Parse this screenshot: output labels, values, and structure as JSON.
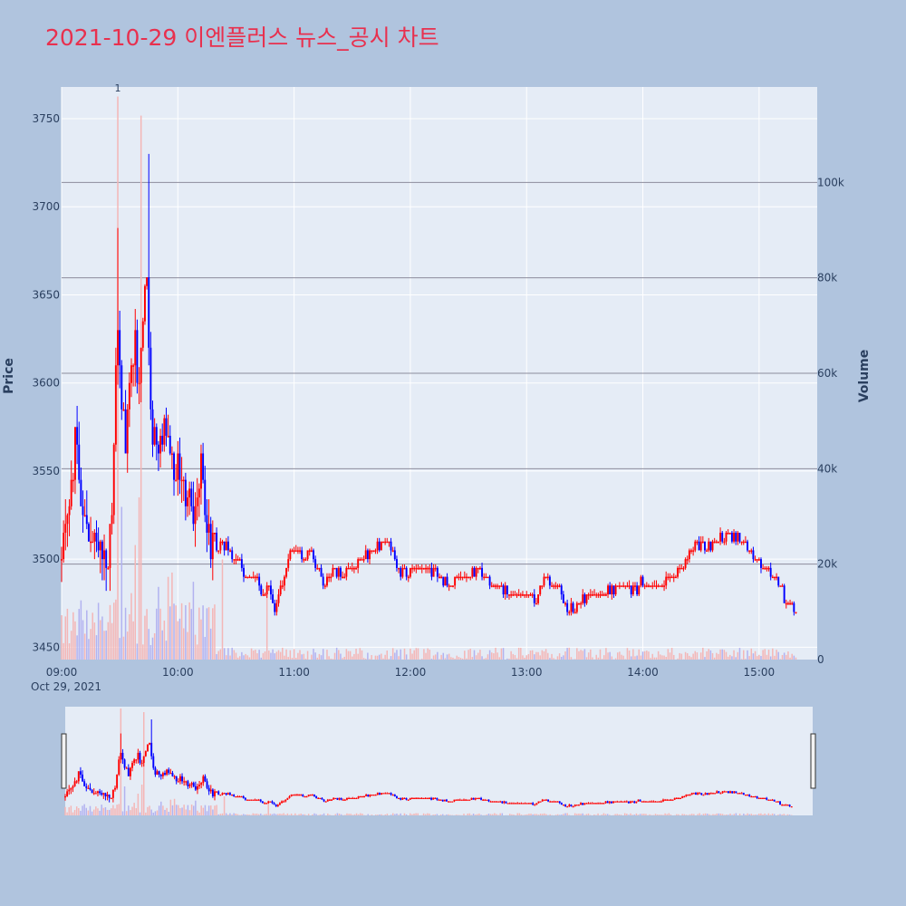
{
  "title": "2021-10-29 이엔플러스 뉴스_공시 차트",
  "colors": {
    "background": "#b0c4de",
    "plot_background": "#e5ecf6",
    "title": "#e8304e",
    "up": "#ff0000",
    "down": "#0000ff",
    "volume_up": "#f4b6b6",
    "volume_down": "#b2b2f0",
    "volume_grid": "#8c8c9c"
  },
  "chart_data": {
    "type": "candlestick",
    "date_label": "Oct 29, 2021",
    "y_label": "Price",
    "y2_label": "Volume",
    "price_ticks": [
      3450,
      3500,
      3550,
      3600,
      3650,
      3700,
      3750
    ],
    "price_tick_labels": [
      "3450",
      "3500",
      "3550",
      "3600",
      "3650",
      "3700",
      "3750"
    ],
    "price_range": [
      3443,
      3768
    ],
    "volume_ticks": [
      0,
      20000,
      40000,
      60000,
      80000,
      100000
    ],
    "volume_tick_labels": [
      "0",
      "20k",
      "40k",
      "60k",
      "80k",
      "100k"
    ],
    "volume_range": [
      0,
      120000
    ],
    "time_range": [
      "09:00",
      "15:30"
    ],
    "time_ticks": [
      "09:00",
      "10:00",
      "11:00",
      "12:00",
      "13:00",
      "14:00",
      "15:00"
    ],
    "annotations": [
      {
        "time": "09:29",
        "text": "1"
      }
    ],
    "price_waypoints": [
      [
        "09:00",
        3500
      ],
      [
        "09:02",
        3525
      ],
      [
        "09:05",
        3535
      ],
      [
        "09:07",
        3575
      ],
      [
        "09:09",
        3545
      ],
      [
        "09:11",
        3530
      ],
      [
        "09:13",
        3515
      ],
      [
        "09:16",
        3510
      ],
      [
        "09:20",
        3508
      ],
      [
        "09:24",
        3495
      ],
      [
        "09:26",
        3525
      ],
      [
        "09:28",
        3615
      ],
      [
        "09:29",
        3640
      ],
      [
        "09:31",
        3590
      ],
      [
        "09:33",
        3570
      ],
      [
        "09:36",
        3610
      ],
      [
        "09:38",
        3625
      ],
      [
        "09:40",
        3595
      ],
      [
        "09:42",
        3640
      ],
      [
        "09:44",
        3665
      ],
      [
        "09:46",
        3580
      ],
      [
        "09:48",
        3570
      ],
      [
        "09:50",
        3555
      ],
      [
        "09:53",
        3580
      ],
      [
        "09:55",
        3565
      ],
      [
        "09:58",
        3545
      ],
      [
        "10:00",
        3555
      ],
      [
        "10:03",
        3535
      ],
      [
        "10:06",
        3540
      ],
      [
        "10:08",
        3525
      ],
      [
        "10:11",
        3548
      ],
      [
        "10:13",
        3550
      ],
      [
        "10:15",
        3520
      ],
      [
        "10:17",
        3510
      ],
      [
        "10:20",
        3505
      ],
      [
        "10:23",
        3510
      ],
      [
        "10:26",
        3505
      ],
      [
        "10:30",
        3500
      ],
      [
        "10:35",
        3490
      ],
      [
        "10:40",
        3490
      ],
      [
        "10:44",
        3480
      ],
      [
        "10:47",
        3485
      ],
      [
        "10:50",
        3470
      ],
      [
        "10:52",
        3480
      ],
      [
        "10:55",
        3490
      ],
      [
        "10:58",
        3505
      ],
      [
        "11:02",
        3505
      ],
      [
        "11:05",
        3500
      ],
      [
        "11:08",
        3505
      ],
      [
        "11:12",
        3495
      ],
      [
        "11:16",
        3485
      ],
      [
        "11:20",
        3495
      ],
      [
        "11:25",
        3490
      ],
      [
        "11:30",
        3495
      ],
      [
        "11:35",
        3500
      ],
      [
        "11:40",
        3505
      ],
      [
        "11:45",
        3510
      ],
      [
        "11:50",
        3505
      ],
      [
        "11:55",
        3492
      ],
      [
        "12:00",
        3495
      ],
      [
        "12:05",
        3495
      ],
      [
        "12:10",
        3492
      ],
      [
        "12:15",
        3490
      ],
      [
        "12:20",
        3485
      ],
      [
        "12:25",
        3490
      ],
      [
        "12:30",
        3490
      ],
      [
        "12:35",
        3495
      ],
      [
        "12:40",
        3488
      ],
      [
        "12:45",
        3485
      ],
      [
        "12:50",
        3482
      ],
      [
        "12:55",
        3480
      ],
      [
        "13:00",
        3480
      ],
      [
        "13:05",
        3478
      ],
      [
        "13:10",
        3490
      ],
      [
        "13:15",
        3485
      ],
      [
        "13:20",
        3475
      ],
      [
        "13:25",
        3472
      ],
      [
        "13:30",
        3478
      ],
      [
        "13:35",
        3480
      ],
      [
        "13:40",
        3483
      ],
      [
        "13:45",
        3483
      ],
      [
        "13:50",
        3485
      ],
      [
        "13:55",
        3482
      ],
      [
        "14:00",
        3488
      ],
      [
        "14:05",
        3485
      ],
      [
        "14:10",
        3485
      ],
      [
        "14:15",
        3490
      ],
      [
        "14:20",
        3495
      ],
      [
        "14:25",
        3505
      ],
      [
        "14:30",
        3510
      ],
      [
        "14:35",
        3505
      ],
      [
        "14:40",
        3512
      ],
      [
        "14:45",
        3515
      ],
      [
        "14:50",
        3510
      ],
      [
        "14:55",
        3505
      ],
      [
        "15:00",
        3500
      ],
      [
        "15:05",
        3495
      ],
      [
        "15:10",
        3485
      ],
      [
        "15:15",
        3475
      ],
      [
        "15:19",
        3470
      ]
    ]
  }
}
